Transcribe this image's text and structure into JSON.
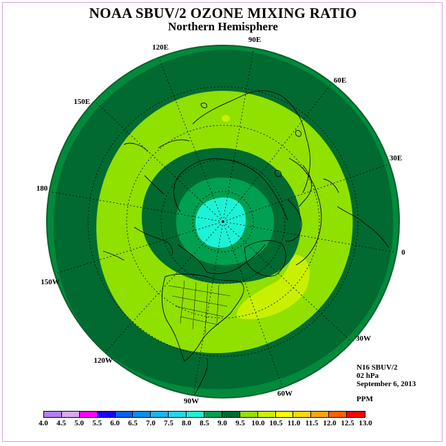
{
  "title": "NOAA SBUV/2 OZONE MIXING RATIO",
  "subtitle": "Northern Hemisphere",
  "info": {
    "satellite": "N16 SBUV/2",
    "level": "02 hPa",
    "date": "September 6, 2013",
    "units": "PPM"
  },
  "longitude_labels": [
    "90E",
    "60E",
    "30E",
    "0",
    "30W",
    "60W",
    "90W",
    "120W",
    "150W",
    "180",
    "150E",
    "120E"
  ],
  "legend": {
    "ticks": [
      "4.0",
      "4.5",
      "5.0",
      "5.5",
      "6.0",
      "6.5",
      "7.0",
      "7.5",
      "8.0",
      "8.5",
      "9.0",
      "9.5",
      "10.0",
      "10.5",
      "11.0",
      "11.5",
      "12.0",
      "12.5",
      "13.0"
    ],
    "colors": [
      "#b27ef2",
      "#d8a6f3",
      "#ff00ff",
      "#1c00ff",
      "#0a5ff0",
      "#0a8ef2",
      "#18b4f2",
      "#1ed8f0",
      "#1cf2d6",
      "#00a050",
      "#006a30",
      "#90e000",
      "#c8f000",
      "#ffff00",
      "#ffd700",
      "#ffa500",
      "#ff6000",
      "#ff0000",
      "#8b5a3c"
    ]
  },
  "chart_data": {
    "type": "heatmap",
    "projection": "north polar stereographic",
    "quantity": "ozone mixing ratio",
    "units": "PPM",
    "pressure_level": "02 hPa",
    "date": "September 6, 2013",
    "instrument": "N16 SBUV/2",
    "contour_levels": [
      4.0,
      4.5,
      5.0,
      5.5,
      6.0,
      6.5,
      7.0,
      7.5,
      8.0,
      8.5,
      9.0,
      9.5,
      10.0,
      10.5,
      11.0,
      11.5,
      12.0,
      12.5,
      13.0
    ],
    "zones": [
      {
        "region": "pole",
        "range": [
          7.5,
          8.0
        ]
      },
      {
        "region": "high latitudes ring",
        "range": [
          8.5,
          9.0
        ]
      },
      {
        "region": "mid latitudes ring",
        "range": [
          9.0,
          9.5
        ]
      },
      {
        "region": "inner ring near pole",
        "range": [
          8.0,
          8.5
        ]
      },
      {
        "region": "lower mid latitudes",
        "range": [
          9.5,
          10.0
        ]
      },
      {
        "region": "outer edge",
        "range": [
          8.0,
          8.5
        ]
      }
    ]
  }
}
